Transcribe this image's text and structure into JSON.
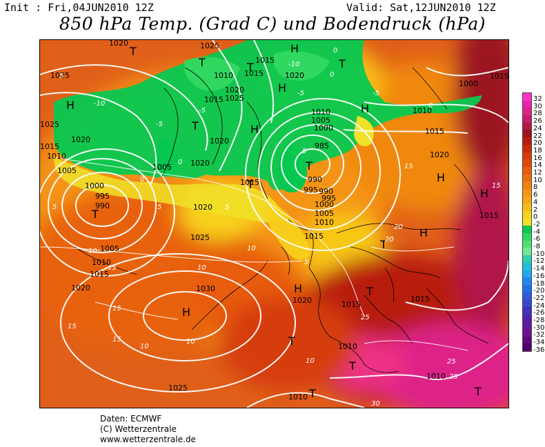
{
  "header": {
    "init": "Init : Fri,04JUN2010 12Z",
    "valid": "Valid: Sat,12JUN2010 12Z",
    "title": "850 hPa Temp. (Grad C) und Bodendruck (hPa)"
  },
  "legend": {
    "ticks": [
      "32",
      "30",
      "28",
      "26",
      "24",
      "22",
      "20",
      "18",
      "16",
      "14",
      "12",
      "10",
      "8",
      "6",
      "4",
      "2",
      "0",
      "-2",
      "-4",
      "-6",
      "-8",
      "-10",
      "-12",
      "-14",
      "-16",
      "-18",
      "-20",
      "-22",
      "-24",
      "-26",
      "-28",
      "-30",
      "-32",
      "-34",
      "-36"
    ],
    "colors": [
      "#ff33cc",
      "#ee22aa",
      "#dd2288",
      "#c81a6e",
      "#b01848",
      "#9c1420",
      "#b81c10",
      "#cc2a08",
      "#d63c08",
      "#e04a08",
      "#e85c0a",
      "#ec6e0c",
      "#f0800e",
      "#f49412",
      "#f7a814",
      "#f8bc18",
      "#f8d21c",
      "#f0e228",
      "#06c850",
      "#30d860",
      "#50e070",
      "#70e890",
      "#30d0b0",
      "#20c0d8",
      "#20a8f0",
      "#2088f0",
      "#2070e8",
      "#3058e0",
      "#3848d0",
      "#4030c0",
      "#5020b0",
      "#6018a0",
      "#701090",
      "#600880",
      "#500070"
    ]
  },
  "map": {
    "pressure_labels": [
      "1025",
      "1020",
      "1015",
      "1010",
      "1005",
      "1000",
      "995",
      "990",
      "985",
      "1030"
    ],
    "temperature_labels": [
      "5",
      "10",
      "15",
      "20",
      "25",
      "30",
      "0",
      "-5",
      "-10"
    ],
    "systems": [
      "H",
      "T"
    ]
  },
  "footer": {
    "line1": "Daten: ECMWF",
    "line2": "(C) Wetterzentrale",
    "line3": "www.wetterzentrale.de"
  }
}
